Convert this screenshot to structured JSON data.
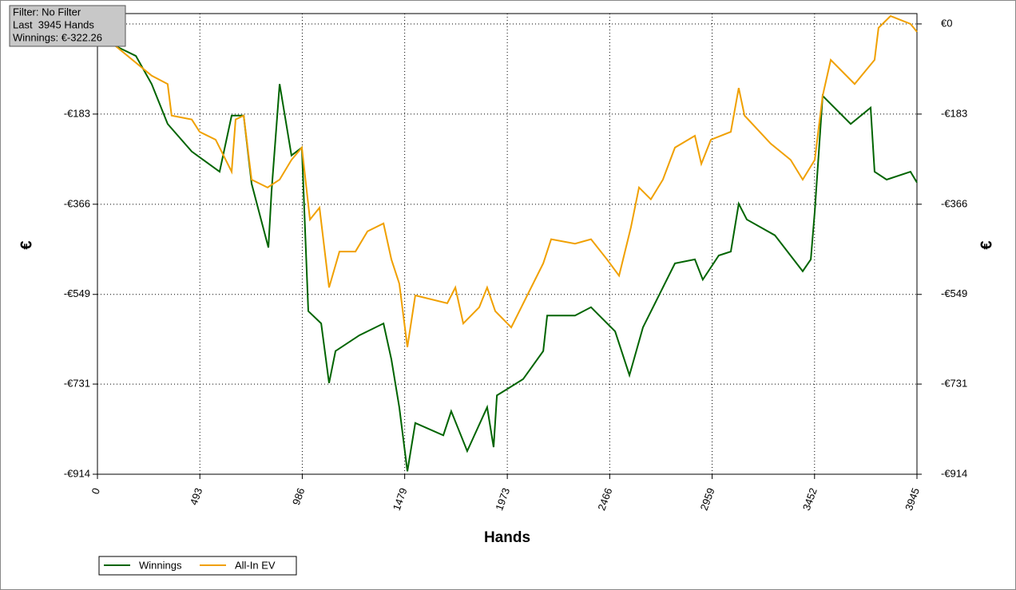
{
  "chart_data": {
    "type": "line",
    "annotations": [
      "Filter: No Filter",
      "Last  3945 Hands",
      "Winnings: €-322.26"
    ],
    "x_label": "Hands",
    "y_label": "€",
    "y2_label": "€",
    "xlim": [
      0,
      3945
    ],
    "xticks": [
      0,
      493,
      986,
      1479,
      1973,
      2466,
      2959,
      3452,
      3945
    ],
    "ylim": [
      -914,
      21
    ],
    "yticks": [
      {
        "value": 0,
        "label": "€0"
      },
      {
        "value": -183,
        "label": "-€183"
      },
      {
        "value": -366,
        "label": "-€366"
      },
      {
        "value": -549,
        "label": "-€549"
      },
      {
        "value": -731,
        "label": "-€731"
      },
      {
        "value": -914,
        "label": "-€914"
      }
    ],
    "grid": true,
    "series": [
      {
        "name": "Winnings",
        "color": "#006400",
        "x": [
          0,
          88,
          185,
          261,
          338,
          454,
          588,
          646,
          704,
          742,
          823,
          838,
          877,
          934,
          984,
          1015,
          1077,
          1115,
          1146,
          1261,
          1377,
          1415,
          1453,
          1492,
          1530,
          1665,
          1703,
          1780,
          1876,
          1907,
          1923,
          2049,
          2146,
          2165,
          2299,
          2376,
          2492,
          2561,
          2626,
          2722,
          2780,
          2876,
          2914,
          2991,
          3049,
          3087,
          3126,
          3261,
          3395,
          3434,
          3453,
          3491,
          3626,
          3722,
          3741,
          3799,
          3914,
          3945
        ],
        "values": [
          0,
          -45,
          -65,
          -122,
          -203,
          -259,
          -300,
          -186,
          -186,
          -324,
          -454,
          -340,
          -122,
          -267,
          -251,
          -583,
          -608,
          -729,
          -664,
          -632,
          -608,
          -681,
          -778,
          -908,
          -810,
          -835,
          -786,
          -867,
          -778,
          -859,
          -754,
          -721,
          -664,
          -592,
          -592,
          -575,
          -624,
          -713,
          -616,
          -535,
          -486,
          -478,
          -519,
          -470,
          -462,
          -365,
          -397,
          -429,
          -502,
          -478,
          -381,
          -146,
          -203,
          -170,
          -300,
          -316,
          -300,
          -322
        ]
      },
      {
        "name": "All-In EV",
        "color": "#f0a000",
        "x": [
          0,
          88,
          261,
          338,
          357,
          454,
          492,
          569,
          646,
          665,
          704,
          742,
          819,
          877,
          934,
          984,
          1023,
          1069,
          1115,
          1165,
          1242,
          1300,
          1377,
          1415,
          1453,
          1492,
          1530,
          1684,
          1723,
          1761,
          1838,
          1876,
          1915,
          1992,
          2069,
          2146,
          2184,
          2299,
          2376,
          2453,
          2511,
          2568,
          2607,
          2664,
          2722,
          2780,
          2876,
          2907,
          2953,
          3049,
          3087,
          3115,
          3241,
          3337,
          3395,
          3453,
          3491,
          3530,
          3645,
          3741,
          3760,
          3818,
          3914,
          3945
        ],
        "values": [
          0,
          -45,
          -105,
          -122,
          -186,
          -194,
          -219,
          -235,
          -300,
          -194,
          -186,
          -316,
          -332,
          -316,
          -276,
          -251,
          -397,
          -373,
          -535,
          -462,
          -462,
          -421,
          -405,
          -478,
          -527,
          -656,
          -551,
          -567,
          -535,
          -608,
          -575,
          -535,
          -583,
          -616,
          -551,
          -486,
          -437,
          -446,
          -437,
          -478,
          -511,
          -413,
          -332,
          -356,
          -316,
          -251,
          -227,
          -284,
          -235,
          -219,
          -130,
          -186,
          -243,
          -276,
          -316,
          -276,
          -146,
          -73,
          -122,
          -73,
          -8,
          16,
          0,
          -16
        ]
      }
    ]
  }
}
